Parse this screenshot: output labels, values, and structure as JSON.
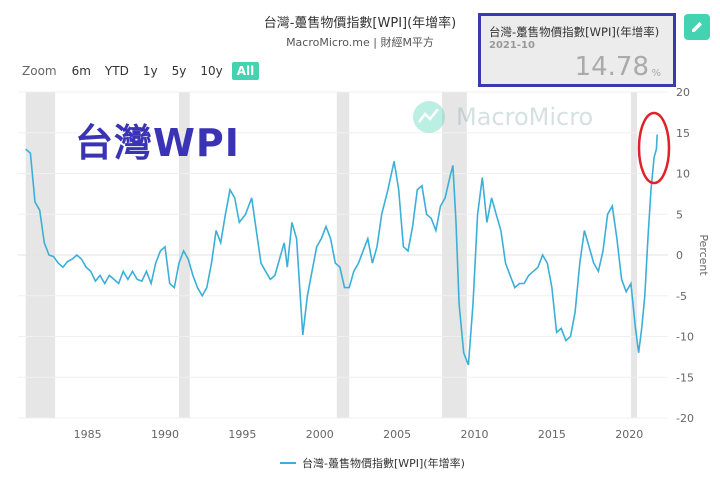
{
  "header": {
    "title": "台灣-躉售物價指數[WPI](年增率)",
    "subtitle": "MacroMicro.me | 財經M平方"
  },
  "zoom": {
    "label": "Zoom",
    "options": [
      "6m",
      "YTD",
      "1y",
      "5y",
      "10y",
      "All"
    ],
    "active": "All"
  },
  "overlay_label": "台灣WPI",
  "watermark": "MacroMicro",
  "info_box": {
    "title": "台灣-躉售物價指數[WPI](年增率)",
    "date": "2021-10",
    "value": "14.78",
    "unit": "%"
  },
  "colors": {
    "line": "#3ab0d8",
    "accent": "#43d3b0",
    "highlight_box": "#3a3ab0",
    "circle": "#e0202a",
    "recession": "#e6e6e6"
  },
  "icons": {
    "edit": "pencil-icon",
    "watermark": "macromicro-logo-icon"
  },
  "chart_data": {
    "type": "line",
    "title": "台灣-躉售物價指數[WPI](年增率)",
    "ylabel": "Percent",
    "ylim": [
      -20,
      20
    ],
    "xlim": [
      1980.5,
      2022.5
    ],
    "x_ticks": [
      1985,
      1990,
      1995,
      2000,
      2005,
      2010,
      2015,
      2020
    ],
    "x_tick_labels": [
      "1985",
      "1990",
      "1995",
      "2000",
      "2005",
      "2010",
      "2015",
      "2020"
    ],
    "y_ticks": [
      20,
      15,
      10,
      5,
      0,
      -5,
      -10,
      -15,
      -20
    ],
    "y_tick_labels": [
      "20",
      "15",
      "10",
      "5",
      "0",
      "-5",
      "-10",
      "-15",
      "-20"
    ],
    "recession_bands": [
      [
        1981.0,
        1982.9
      ],
      [
        1990.9,
        1991.6
      ],
      [
        2001.1,
        2001.9
      ],
      [
        2007.9,
        2009.5
      ],
      [
        2020.1,
        2020.5
      ]
    ],
    "legend": "top-less bottom-center",
    "series": [
      {
        "name": "台灣-躉售物價指數[WPI](年增率)",
        "points": [
          [
            1981.0,
            13.0
          ],
          [
            1981.3,
            12.5
          ],
          [
            1981.6,
            6.5
          ],
          [
            1981.9,
            5.5
          ],
          [
            1982.2,
            1.5
          ],
          [
            1982.5,
            0.0
          ],
          [
            1982.8,
            -0.2
          ],
          [
            1983.1,
            -1.0
          ],
          [
            1983.4,
            -1.5
          ],
          [
            1983.7,
            -0.8
          ],
          [
            1984.0,
            -0.5
          ],
          [
            1984.3,
            0.0
          ],
          [
            1984.6,
            -0.5
          ],
          [
            1984.9,
            -1.5
          ],
          [
            1985.2,
            -2.0
          ],
          [
            1985.5,
            -3.2
          ],
          [
            1985.8,
            -2.5
          ],
          [
            1986.1,
            -3.5
          ],
          [
            1986.4,
            -2.5
          ],
          [
            1986.7,
            -3.0
          ],
          [
            1987.0,
            -3.5
          ],
          [
            1987.3,
            -2.0
          ],
          [
            1987.6,
            -3.0
          ],
          [
            1987.9,
            -2.0
          ],
          [
            1988.2,
            -3.0
          ],
          [
            1988.5,
            -3.2
          ],
          [
            1988.8,
            -2.0
          ],
          [
            1989.1,
            -3.5
          ],
          [
            1989.4,
            -1.0
          ],
          [
            1989.7,
            0.5
          ],
          [
            1990.0,
            1.0
          ],
          [
            1990.3,
            -3.5
          ],
          [
            1990.6,
            -4.0
          ],
          [
            1990.9,
            -1.0
          ],
          [
            1991.2,
            0.5
          ],
          [
            1991.5,
            -0.5
          ],
          [
            1991.8,
            -2.5
          ],
          [
            1992.1,
            -4.0
          ],
          [
            1992.4,
            -5.0
          ],
          [
            1992.7,
            -4.0
          ],
          [
            1993.0,
            -1.0
          ],
          [
            1993.3,
            3.0
          ],
          [
            1993.6,
            1.5
          ],
          [
            1993.9,
            5.0
          ],
          [
            1994.2,
            8.0
          ],
          [
            1994.5,
            7.0
          ],
          [
            1994.8,
            4.0
          ],
          [
            1995.2,
            5.0
          ],
          [
            1995.6,
            7.0
          ],
          [
            1995.9,
            3.0
          ],
          [
            1996.2,
            -1.0
          ],
          [
            1996.5,
            -2.0
          ],
          [
            1996.8,
            -3.0
          ],
          [
            1997.1,
            -2.5
          ],
          [
            1997.4,
            -0.5
          ],
          [
            1997.7,
            1.5
          ],
          [
            1997.9,
            -1.5
          ],
          [
            1998.2,
            4.0
          ],
          [
            1998.5,
            2.0
          ],
          [
            1998.7,
            -4.0
          ],
          [
            1998.9,
            -9.8
          ],
          [
            1999.2,
            -5.0
          ],
          [
            1999.5,
            -2.0
          ],
          [
            1999.8,
            1.0
          ],
          [
            2000.1,
            2.0
          ],
          [
            2000.4,
            3.5
          ],
          [
            2000.7,
            2.0
          ],
          [
            2001.0,
            -1.0
          ],
          [
            2001.3,
            -1.5
          ],
          [
            2001.6,
            -4.0
          ],
          [
            2001.9,
            -4.0
          ],
          [
            2002.2,
            -2.0
          ],
          [
            2002.5,
            -1.0
          ],
          [
            2002.8,
            0.5
          ],
          [
            2003.1,
            2.0
          ],
          [
            2003.4,
            -1.0
          ],
          [
            2003.7,
            1.0
          ],
          [
            2004.0,
            5.0
          ],
          [
            2004.4,
            8.0
          ],
          [
            2004.8,
            11.5
          ],
          [
            2005.1,
            8.0
          ],
          [
            2005.4,
            1.0
          ],
          [
            2005.7,
            0.5
          ],
          [
            2006.0,
            3.5
          ],
          [
            2006.3,
            8.0
          ],
          [
            2006.6,
            8.5
          ],
          [
            2006.9,
            5.0
          ],
          [
            2007.2,
            4.5
          ],
          [
            2007.5,
            3.0
          ],
          [
            2007.8,
            6.0
          ],
          [
            2008.1,
            7.0
          ],
          [
            2008.4,
            9.5
          ],
          [
            2008.6,
            11.0
          ],
          [
            2008.8,
            4.0
          ],
          [
            2009.0,
            -6.0
          ],
          [
            2009.3,
            -12.0
          ],
          [
            2009.6,
            -13.5
          ],
          [
            2009.9,
            -6.0
          ],
          [
            2010.2,
            5.0
          ],
          [
            2010.5,
            9.5
          ],
          [
            2010.8,
            4.0
          ],
          [
            2011.1,
            7.0
          ],
          [
            2011.4,
            5.0
          ],
          [
            2011.7,
            3.0
          ],
          [
            2012.0,
            -1.0
          ],
          [
            2012.3,
            -2.5
          ],
          [
            2012.6,
            -4.0
          ],
          [
            2012.9,
            -3.5
          ],
          [
            2013.2,
            -3.5
          ],
          [
            2013.5,
            -2.5
          ],
          [
            2013.8,
            -2.0
          ],
          [
            2014.1,
            -1.5
          ],
          [
            2014.4,
            0.0
          ],
          [
            2014.7,
            -1.0
          ],
          [
            2015.0,
            -4.0
          ],
          [
            2015.3,
            -9.5
          ],
          [
            2015.6,
            -9.0
          ],
          [
            2015.9,
            -10.5
          ],
          [
            2016.2,
            -10.0
          ],
          [
            2016.5,
            -7.0
          ],
          [
            2016.8,
            -1.0
          ],
          [
            2017.1,
            3.0
          ],
          [
            2017.4,
            1.0
          ],
          [
            2017.7,
            -1.0
          ],
          [
            2018.0,
            -2.0
          ],
          [
            2018.3,
            0.5
          ],
          [
            2018.6,
            5.0
          ],
          [
            2018.9,
            6.0
          ],
          [
            2019.2,
            2.0
          ],
          [
            2019.5,
            -3.0
          ],
          [
            2019.8,
            -4.5
          ],
          [
            2020.1,
            -3.5
          ],
          [
            2020.4,
            -9.0
          ],
          [
            2020.6,
            -12.0
          ],
          [
            2020.8,
            -9.0
          ],
          [
            2021.0,
            -5.0
          ],
          [
            2021.2,
            2.0
          ],
          [
            2021.4,
            8.0
          ],
          [
            2021.6,
            12.0
          ],
          [
            2021.75,
            13.0
          ],
          [
            2021.8,
            14.78
          ]
        ]
      }
    ]
  }
}
